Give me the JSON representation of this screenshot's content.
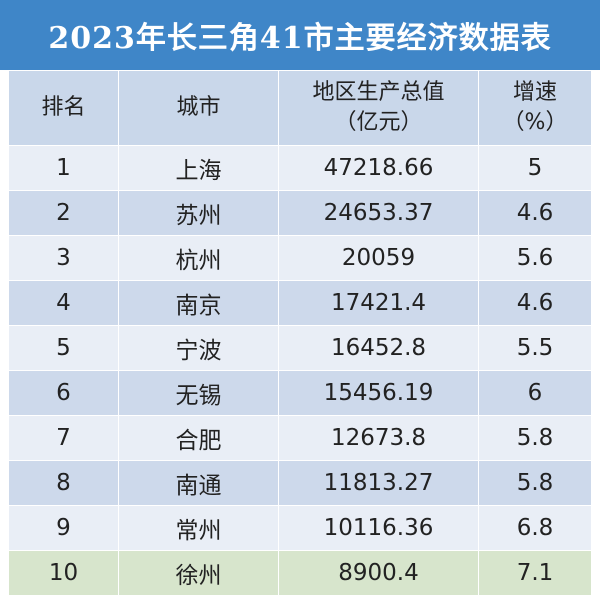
{
  "title": "2023年长三角41市主要经济数据表",
  "headers": {
    "rank": "排名",
    "city": "城市",
    "gdp_line1": "地区生产总值",
    "gdp_line2": "（亿元）",
    "growth_line1": "增速",
    "growth_line2": "（%）"
  },
  "rows": [
    {
      "rank": "1",
      "city": "上海",
      "gdp": "47218.66",
      "growth": "5"
    },
    {
      "rank": "2",
      "city": "苏州",
      "gdp": "24653.37",
      "growth": "4.6"
    },
    {
      "rank": "3",
      "city": "杭州",
      "gdp": "20059",
      "growth": "5.6"
    },
    {
      "rank": "4",
      "city": "南京",
      "gdp": "17421.4",
      "growth": "4.6"
    },
    {
      "rank": "5",
      "city": "宁波",
      "gdp": "16452.8",
      "growth": "5.5"
    },
    {
      "rank": "6",
      "city": "无锡",
      "gdp": "15456.19",
      "growth": "6"
    },
    {
      "rank": "7",
      "city": "合肥",
      "gdp": "12673.8",
      "growth": "5.8"
    },
    {
      "rank": "8",
      "city": "南通",
      "gdp": "11813.27",
      "growth": "5.8"
    },
    {
      "rank": "9",
      "city": "常州",
      "gdp": "10116.36",
      "growth": "6.8"
    },
    {
      "rank": "10",
      "city": "徐州",
      "gdp": "8900.4",
      "growth": "7.1"
    }
  ],
  "colors": {
    "title_bg": "#3f86c8",
    "header_bg": "#c9d7ea",
    "row_light": "#e9eef6",
    "row_dark": "#cdd9eb",
    "row_highlight": "#d7e5cc"
  }
}
